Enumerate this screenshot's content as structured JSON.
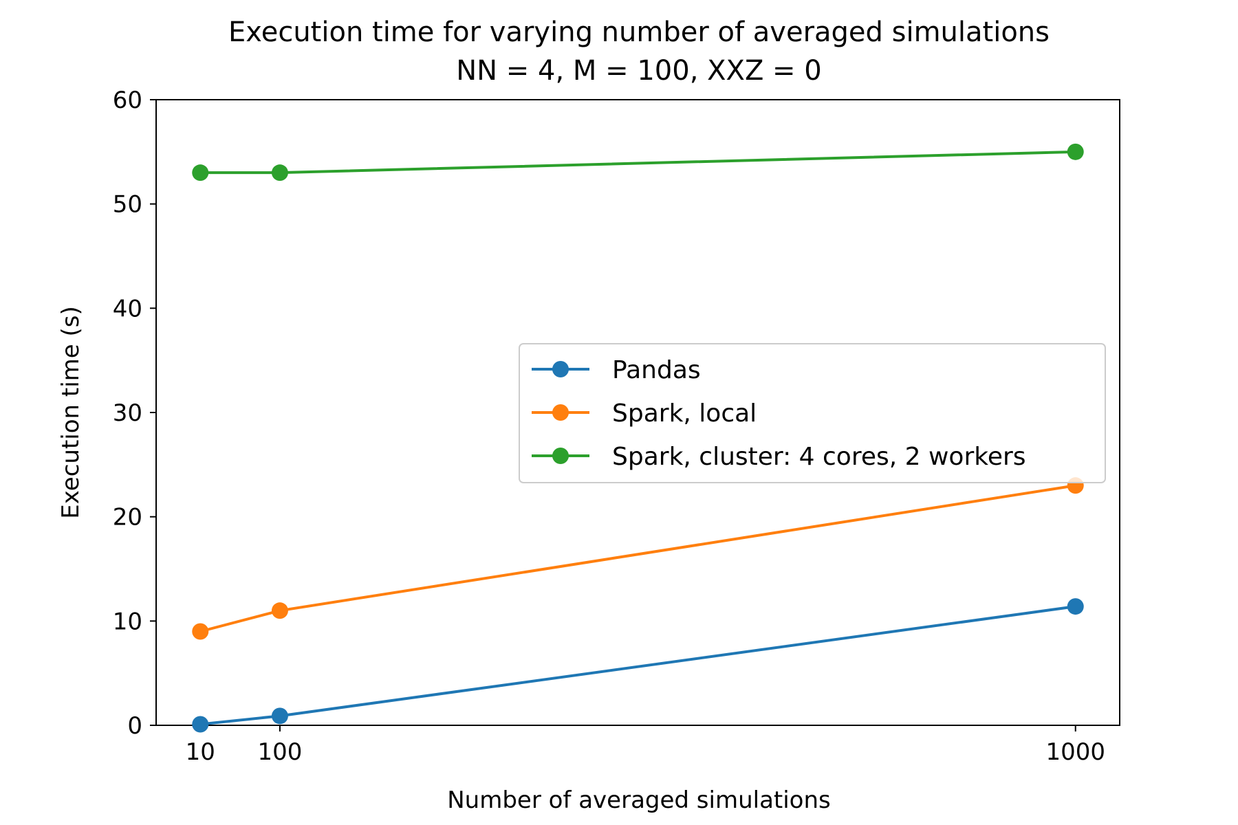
{
  "chart_data": {
    "type": "line",
    "title": "Execution time for varying number of averaged simulations",
    "subtitle": "NN = 4, M = 100, XXZ = 0",
    "xlabel": "Number of averaged simulations",
    "ylabel": "Execution time (s)",
    "x": [
      10,
      100,
      1000
    ],
    "xticks": [
      10,
      100,
      1000
    ],
    "xlim": [
      -40,
      1050
    ],
    "ylim": [
      0,
      60
    ],
    "yticks": [
      0,
      10,
      20,
      30,
      40,
      50,
      60
    ],
    "grid": false,
    "legend_position": "center-right",
    "series": [
      {
        "name": "Pandas",
        "color": "#1f77b4",
        "values": [
          0.1,
          0.9,
          11.4
        ]
      },
      {
        "name": "Spark, local",
        "color": "#ff7f0e",
        "values": [
          9.0,
          11.0,
          23.0
        ]
      },
      {
        "name": "Spark, cluster: 4 cores, 2 workers",
        "color": "#2ca02c",
        "values": [
          53.0,
          53.0,
          55.0
        ]
      }
    ]
  }
}
